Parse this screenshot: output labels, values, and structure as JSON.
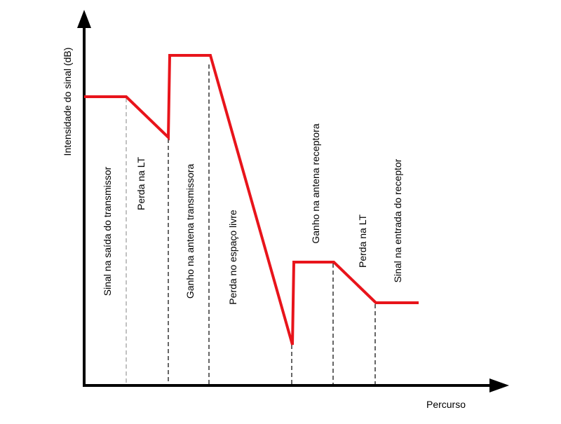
{
  "diagram": {
    "y_axis_label": "Intensidade do sinal (dB)",
    "x_axis_label": "Percurso",
    "segments": [
      {
        "label": "Sinal na saída do transmissor"
      },
      {
        "label": "Perda na LT"
      },
      {
        "label": "Ganho na antena transmissora"
      },
      {
        "label": "Perda no espaço livre"
      },
      {
        "label": "Ganho na antena receptora"
      },
      {
        "label": "Perda na LT"
      },
      {
        "label": "Sinal na entrada do receptor"
      }
    ]
  }
}
